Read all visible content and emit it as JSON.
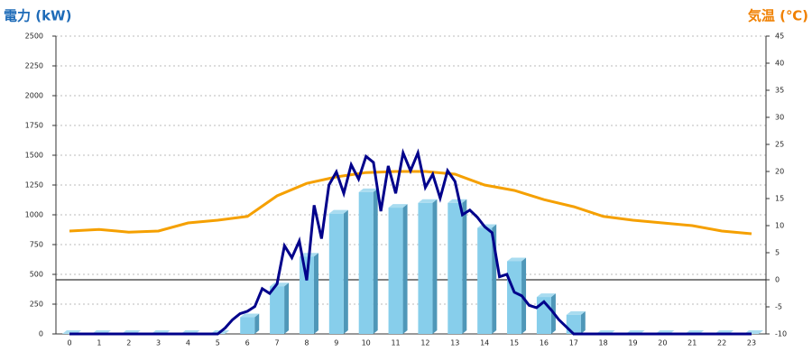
{
  "chart_data": {
    "type": "combo",
    "title_left": "電力 (kW)",
    "title_right": "気温 (℃)",
    "categories": [
      "0",
      "1",
      "2",
      "3",
      "4",
      "5",
      "6",
      "7",
      "8",
      "9",
      "10",
      "11",
      "12",
      "13",
      "14",
      "15",
      "16",
      "17",
      "18",
      "19",
      "20",
      "21",
      "22",
      "23"
    ],
    "bars": {
      "color": "#87ceeb",
      "values": [
        0,
        0,
        0,
        0,
        0,
        0,
        140,
        400,
        650,
        1010,
        1190,
        1060,
        1100,
        1100,
        890,
        610,
        310,
        160,
        0,
        0,
        0,
        0,
        0,
        0
      ]
    },
    "power_line": {
      "color": "#00008b",
      "x": [
        0,
        5,
        5.25,
        5.5,
        5.75,
        6,
        6.25,
        6.5,
        6.75,
        7,
        7.25,
        7.5,
        7.75,
        8,
        8.25,
        8.5,
        8.75,
        9,
        9.25,
        9.5,
        9.75,
        10,
        10.25,
        10.5,
        10.75,
        11,
        11.25,
        11.5,
        11.75,
        12,
        12.25,
        12.5,
        12.75,
        13,
        13.25,
        13.5,
        13.75,
        14,
        14.25,
        14.5,
        14.75,
        15,
        15.25,
        15.5,
        15.75,
        16,
        16.25,
        16.5,
        16.75,
        17,
        17.25,
        23
      ],
      "values": [
        0,
        0,
        50,
        120,
        170,
        190,
        230,
        380,
        340,
        420,
        740,
        640,
        780,
        450,
        1080,
        800,
        1250,
        1360,
        1180,
        1420,
        1300,
        1490,
        1440,
        1030,
        1410,
        1180,
        1520,
        1370,
        1520,
        1230,
        1340,
        1140,
        1370,
        1280,
        1000,
        1040,
        980,
        900,
        850,
        480,
        500,
        350,
        320,
        240,
        220,
        270,
        200,
        120,
        60,
        0,
        0,
        0
      ]
    },
    "temperature": {
      "color": "#f5a000",
      "axis": "y2",
      "values": [
        9,
        9.3,
        8.8,
        9,
        10.5,
        11,
        11.7,
        15.5,
        17.8,
        19,
        19.8,
        20,
        20,
        19.5,
        17.5,
        16.5,
        14.8,
        13.5,
        11.7,
        11,
        10.5,
        10,
        9,
        8.5
      ]
    },
    "ylim": [
      0,
      2500
    ],
    "yticks": [
      0,
      250,
      500,
      750,
      1000,
      1250,
      1500,
      1750,
      2000,
      2250,
      2500
    ],
    "y2lim": [
      -10,
      45
    ],
    "y2ticks": [
      -10,
      -5,
      0,
      5,
      10,
      15,
      20,
      25,
      30,
      35,
      40,
      45
    ],
    "grid": true
  }
}
